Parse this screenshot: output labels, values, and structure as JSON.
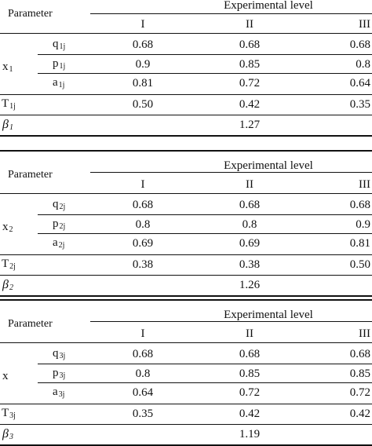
{
  "tables": [
    {
      "param_header": "Parameter",
      "level_header": "Experimental level",
      "levels": [
        "I",
        "II",
        "III"
      ],
      "var_name": "x",
      "var_sub": "1",
      "rows": [
        {
          "sym": "q",
          "sub": "1j",
          "values": [
            "0.68",
            "0.68",
            "0.68"
          ]
        },
        {
          "sym": "p",
          "sub": "1j",
          "values": [
            "0.9",
            "0.85",
            "0.8"
          ]
        },
        {
          "sym": "a",
          "sub": "1j",
          "values": [
            "0.81",
            "0.72",
            "0.64"
          ]
        }
      ],
      "t_row": {
        "sym": "T",
        "sub": "1j",
        "values": [
          "0.50",
          "0.42",
          "0.35"
        ]
      },
      "beta": {
        "sym": "β",
        "sub": "1",
        "value": "1.27"
      }
    },
    {
      "param_header": "Parameter",
      "level_header": "Experimental level",
      "levels": [
        "I",
        "II",
        "III"
      ],
      "var_name": "x",
      "var_sub": "2",
      "rows": [
        {
          "sym": "q",
          "sub": "2j",
          "values": [
            "0.68",
            "0.68",
            "0.68"
          ]
        },
        {
          "sym": "p",
          "sub": "2j",
          "values": [
            "0.8",
            "0.8",
            "0.9"
          ]
        },
        {
          "sym": "a",
          "sub": "2j",
          "values": [
            "0.69",
            "0.69",
            "0.81"
          ]
        }
      ],
      "t_row": {
        "sym": "T",
        "sub": "2j",
        "values": [
          "0.38",
          "0.38",
          "0.50"
        ]
      },
      "beta": {
        "sym": "β",
        "sub": "2",
        "value": "1.26"
      }
    },
    {
      "param_header": "Parameter",
      "level_header": "Experimental level",
      "levels": [
        "I",
        "II",
        "III"
      ],
      "var_name": "x",
      "var_sub": "",
      "rows": [
        {
          "sym": "q",
          "sub": "3j",
          "values": [
            "0.68",
            "0.68",
            "0.68"
          ]
        },
        {
          "sym": "p",
          "sub": "3j",
          "values": [
            "0.8",
            "0.85",
            "0.85"
          ]
        },
        {
          "sym": "a",
          "sub": "3j",
          "values": [
            "0.64",
            "0.72",
            "0.72"
          ]
        }
      ],
      "t_row": {
        "sym": "T",
        "sub": "3j",
        "values": [
          "0.35",
          "0.42",
          "0.42"
        ]
      },
      "beta": {
        "sym": "β",
        "sub": "3",
        "value": "1.19"
      }
    }
  ]
}
